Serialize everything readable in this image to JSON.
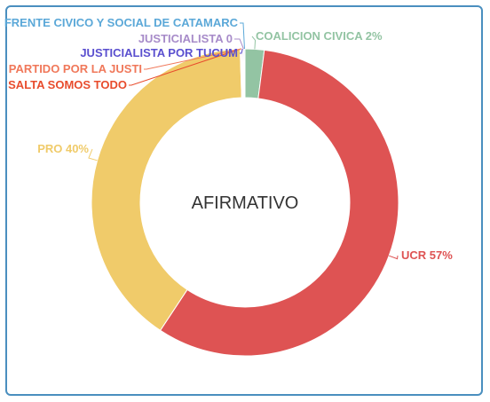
{
  "chart_data": {
    "type": "pie",
    "center_label": "AFIRMATIVO",
    "slices": [
      {
        "label": "COALICION CIVICA",
        "value": 2,
        "value_text": "2%",
        "color": "#93c4a3"
      },
      {
        "label": "UCR",
        "value": 57,
        "value_text": "57%",
        "color": "#de5353"
      },
      {
        "label": "PRO",
        "value": 40,
        "value_text": "40%",
        "color": "#f0cb6a"
      },
      {
        "label": "SALTA SOMOS TODO",
        "value": 0.1,
        "value_text": "",
        "color": "#e84c2d"
      },
      {
        "label": "PARTIDO POR LA JUSTI",
        "value": 0.1,
        "value_text": "",
        "color": "#f0785a"
      },
      {
        "label": "JUSTICIALISTA POR TUCUM",
        "value": 0.1,
        "value_text": "",
        "color": "#5a4fcf"
      },
      {
        "label": "JUSTICIALISTA",
        "value": 0.1,
        "value_text": "0",
        "color": "#a78bc9"
      },
      {
        "label": "FRENTE CIVICO Y SOCIAL DE CATAMARC",
        "value": 0.1,
        "value_text": "",
        "color": "#5ba8d8"
      }
    ]
  }
}
